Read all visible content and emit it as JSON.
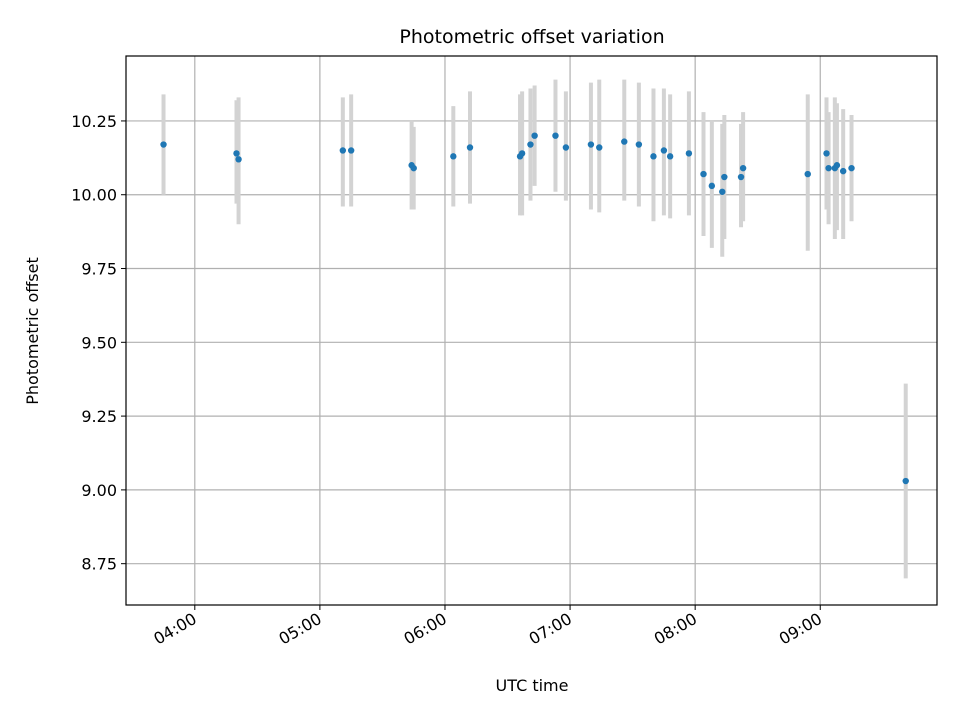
{
  "chart_data": {
    "type": "scatter",
    "title": "Photometric offset variation",
    "xlabel": "UTC time",
    "ylabel": "Photometric offset",
    "xlim": [
      "03:27",
      "09:56"
    ],
    "ylim": [
      8.61,
      10.47
    ],
    "grid": true,
    "x_ticks": [
      "04:00",
      "05:00",
      "06:00",
      "07:00",
      "08:00",
      "09:00"
    ],
    "y_ticks": [
      8.75,
      9.0,
      9.25,
      9.5,
      9.75,
      10.0,
      10.25
    ],
    "y_tick_labels": [
      "8.75",
      "9.00",
      "9.25",
      "9.50",
      "9.75",
      "10.00",
      "10.25"
    ],
    "marker_color": "#1f77b4",
    "errorbar_color": "#d3d3d3",
    "series": [
      {
        "points": [
          {
            "x": "03:45",
            "y": 10.17,
            "lo": 10.0,
            "hi": 10.34
          },
          {
            "x": "04:20",
            "y": 10.14,
            "lo": 9.97,
            "hi": 10.32
          },
          {
            "x": "04:21",
            "y": 10.12,
            "lo": 9.9,
            "hi": 10.33
          },
          {
            "x": "05:11",
            "y": 10.15,
            "lo": 9.96,
            "hi": 10.33
          },
          {
            "x": "05:15",
            "y": 10.15,
            "lo": 9.96,
            "hi": 10.34
          },
          {
            "x": "05:44",
            "y": 10.1,
            "lo": 9.95,
            "hi": 10.25
          },
          {
            "x": "05:45",
            "y": 10.09,
            "lo": 9.95,
            "hi": 10.23
          },
          {
            "x": "06:04",
            "y": 10.13,
            "lo": 9.96,
            "hi": 10.3
          },
          {
            "x": "06:12",
            "y": 10.16,
            "lo": 9.97,
            "hi": 10.35
          },
          {
            "x": "06:36",
            "y": 10.13,
            "lo": 9.93,
            "hi": 10.34
          },
          {
            "x": "06:37",
            "y": 10.14,
            "lo": 9.93,
            "hi": 10.35
          },
          {
            "x": "06:41",
            "y": 10.17,
            "lo": 9.98,
            "hi": 10.36
          },
          {
            "x": "06:43",
            "y": 10.2,
            "lo": 10.03,
            "hi": 10.37
          },
          {
            "x": "06:53",
            "y": 10.2,
            "lo": 10.01,
            "hi": 10.39
          },
          {
            "x": "06:58",
            "y": 10.16,
            "lo": 9.98,
            "hi": 10.35
          },
          {
            "x": "07:10",
            "y": 10.17,
            "lo": 9.95,
            "hi": 10.38
          },
          {
            "x": "07:14",
            "y": 10.16,
            "lo": 9.94,
            "hi": 10.39
          },
          {
            "x": "07:26",
            "y": 10.18,
            "lo": 9.98,
            "hi": 10.39
          },
          {
            "x": "07:33",
            "y": 10.17,
            "lo": 9.96,
            "hi": 10.38
          },
          {
            "x": "07:40",
            "y": 10.13,
            "lo": 9.91,
            "hi": 10.36
          },
          {
            "x": "07:45",
            "y": 10.15,
            "lo": 9.93,
            "hi": 10.36
          },
          {
            "x": "07:48",
            "y": 10.13,
            "lo": 9.92,
            "hi": 10.34
          },
          {
            "x": "07:57",
            "y": 10.14,
            "lo": 9.93,
            "hi": 10.35
          },
          {
            "x": "08:04",
            "y": 10.07,
            "lo": 9.86,
            "hi": 10.28
          },
          {
            "x": "08:08",
            "y": 10.03,
            "lo": 9.82,
            "hi": 10.25
          },
          {
            "x": "08:13",
            "y": 10.01,
            "lo": 9.79,
            "hi": 10.24
          },
          {
            "x": "08:14",
            "y": 10.06,
            "lo": 9.85,
            "hi": 10.27
          },
          {
            "x": "08:22",
            "y": 10.06,
            "lo": 9.89,
            "hi": 10.24
          },
          {
            "x": "08:23",
            "y": 10.09,
            "lo": 9.91,
            "hi": 10.28
          },
          {
            "x": "08:54",
            "y": 10.07,
            "lo": 9.81,
            "hi": 10.34
          },
          {
            "x": "09:03",
            "y": 10.14,
            "lo": 9.95,
            "hi": 10.33
          },
          {
            "x": "09:04",
            "y": 10.09,
            "lo": 9.9,
            "hi": 10.28
          },
          {
            "x": "09:07",
            "y": 10.09,
            "lo": 9.85,
            "hi": 10.33
          },
          {
            "x": "09:08",
            "y": 10.1,
            "lo": 9.88,
            "hi": 10.31
          },
          {
            "x": "09:11",
            "y": 10.08,
            "lo": 9.85,
            "hi": 10.29
          },
          {
            "x": "09:15",
            "y": 10.09,
            "lo": 9.91,
            "hi": 10.27
          },
          {
            "x": "09:41",
            "y": 9.03,
            "lo": 8.7,
            "hi": 9.36
          }
        ]
      }
    ]
  }
}
